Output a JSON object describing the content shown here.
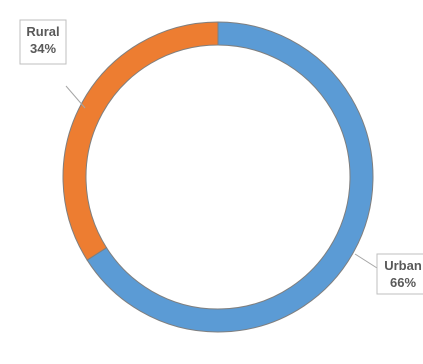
{
  "chart_data": {
    "type": "pie",
    "variant": "doughnut",
    "title": "",
    "categories": [
      "Urban",
      "Rural"
    ],
    "values": [
      66,
      34
    ],
    "unit": "%",
    "colors": [
      "#5b9bd5",
      "#ed7d31"
    ],
    "data_labels": [
      {
        "category": "Urban",
        "value_text": "66%"
      },
      {
        "category": "Rural",
        "value_text": "34%"
      }
    ],
    "legend": "none"
  }
}
